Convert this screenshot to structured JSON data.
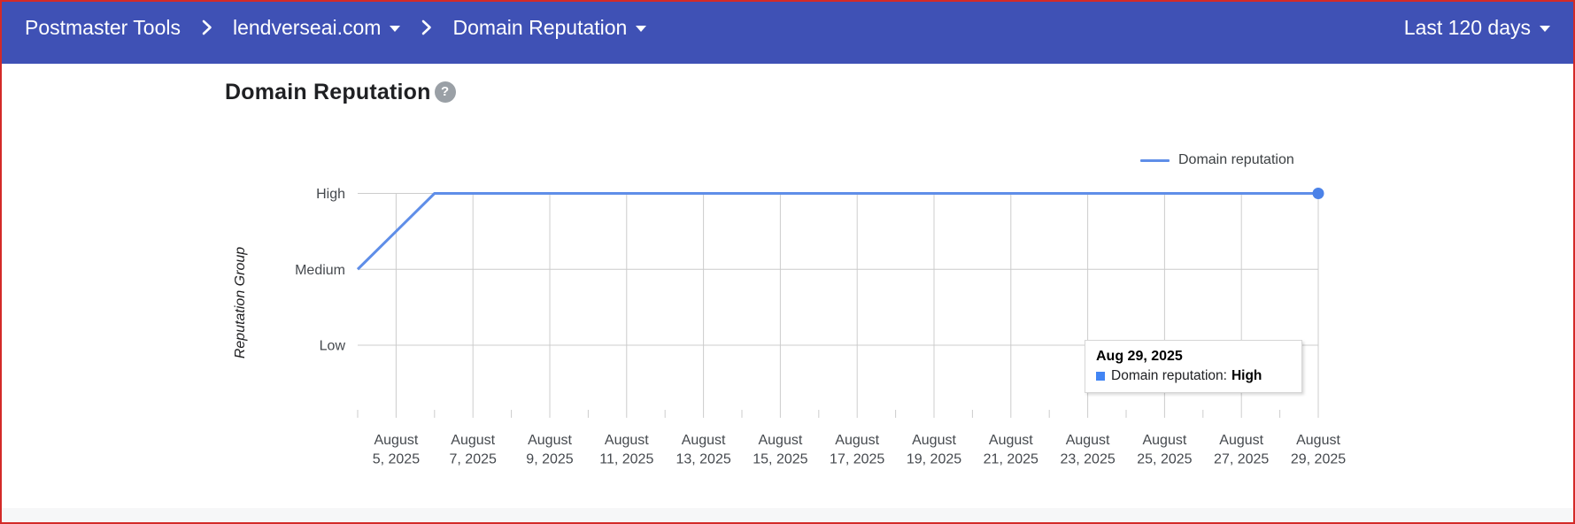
{
  "header": {
    "app_title": "Postmaster Tools",
    "domain_selector": "lendverseai.com",
    "page_selector": "Domain Reputation",
    "date_range_selector": "Last 120 days"
  },
  "main": {
    "title": "Domain Reputation",
    "help_glyph": "?"
  },
  "colors": {
    "header_bg": "#3f51b5",
    "screen_border": "#d32a28",
    "line": "#5f8ee8",
    "marker": "#4b82e8",
    "tooltip_swatch": "#4285f4",
    "gridline": "#cccccc",
    "axis_text": "#45494e"
  },
  "chart_data": {
    "type": "line",
    "title": "Domain Reputation",
    "xlabel": "",
    "ylabel": "Reputation Group",
    "y_categories": [
      "High",
      "Medium",
      "Low"
    ],
    "x_tick_labels": [
      "August 5, 2025",
      "August 7, 2025",
      "August 9, 2025",
      "August 11, 2025",
      "August 13, 2025",
      "August 15, 2025",
      "August 17, 2025",
      "August 19, 2025",
      "August 21, 2025",
      "August 23, 2025",
      "August 25, 2025",
      "August 27, 2025",
      "August 29, 2025"
    ],
    "x_range": [
      "August 4, 2025",
      "August 29, 2025"
    ],
    "grid": true,
    "legend": {
      "position": "top-right",
      "entries": [
        "Domain reputation"
      ]
    },
    "series": [
      {
        "name": "Domain reputation",
        "color": "#5f8ee8",
        "points": [
          {
            "date": "August 4, 2025",
            "value": "Medium"
          },
          {
            "date": "August 6, 2025",
            "value": "High"
          },
          {
            "date": "August 29, 2025",
            "value": "High"
          }
        ],
        "end_marker": true
      }
    ],
    "tooltip": {
      "title": "Aug 29, 2025",
      "label": "Domain reputation:",
      "value": "High"
    }
  }
}
